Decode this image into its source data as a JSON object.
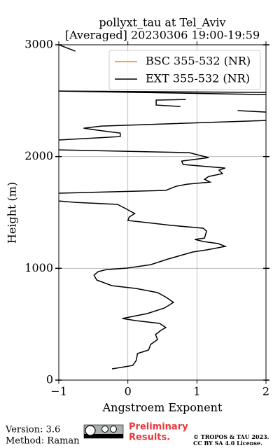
{
  "chart_data": {
    "type": "profile",
    "title": "pollyxt_tau at Tel_Aviv",
    "subtitle": "[Averaged] 20230306 19:00-19:59",
    "x_label": "Angstroem Exponent",
    "y_label": "Height (m)",
    "xlim": [
      -1,
      2
    ],
    "xticks": [
      {
        "value": -1,
        "label": "−1"
      },
      0,
      1,
      2
    ],
    "ylim": [
      0,
      3000
    ],
    "yticks": [
      0,
      1000,
      2000,
      3000
    ],
    "grid": true,
    "legend": "upper right",
    "heights": [
      100,
      131,
      175,
      238,
      269,
      319,
      363,
      407,
      445,
      470,
      507,
      532,
      551,
      595,
      645,
      695,
      739,
      783,
      820,
      845,
      895,
      939,
      971,
      989,
      1002,
      1033,
      1083,
      1146,
      1165,
      1196,
      1221,
      1240,
      1259,
      1271,
      1334,
      1359,
      1384,
      1409,
      1428,
      1459,
      1490,
      1534,
      1572,
      1590,
      1603,
      null,
      1672,
      1697,
      1734,
      1753,
      1772,
      1797,
      1822,
      1847,
      1878,
      1897,
      1929,
      1960,
      1991,
      2035,
      2060,
      null,
      2148,
      2179,
      2210,
      2235,
      2254,
      2273,
      2323,
      null,
      2411,
      2398,
      null,
      2448,
      2461,
      2505,
      2511,
      null,
      2555,
      2586,
      2574,
      null,
      2943,
      2962,
      3000
    ],
    "series": [
      {
        "name": "BSC 355-532 (NR)",
        "color": "#ff7f0e"
      },
      {
        "name": "EXT 355-532 (NR)",
        "color": "#000000",
        "values": [
          -0.23,
          0.07,
          0.12,
          0.14,
          0.3,
          0.33,
          0.43,
          0.4,
          0.48,
          0.55,
          0.46,
          0.12,
          -0.08,
          0.28,
          0.53,
          0.66,
          0.56,
          0.43,
          0.12,
          -0.23,
          -0.45,
          -0.49,
          -0.43,
          -0.31,
          -0.01,
          0.33,
          0.58,
          0.94,
          1.14,
          1.41,
          1.31,
          1.09,
          0.97,
          1.11,
          1.14,
          1.09,
          0.63,
          0.28,
          0.0,
          0.02,
          0.1,
          -0.03,
          -0.15,
          -0.76,
          -1,
          null,
          -1,
          0.55,
          0.7,
          0.86,
          1.19,
          1.11,
          1.17,
          1.37,
          1.32,
          1.41,
          0.8,
          0.78,
          1.17,
          0.89,
          -1,
          null,
          -1,
          -0.11,
          -0.11,
          -0.43,
          -0.64,
          -0.38,
          2,
          null,
          1.59,
          2,
          null,
          0.76,
          0.41,
          0.41,
          0.84,
          null,
          2,
          -1,
          2,
          null,
          -0.76,
          -0.84,
          -1
        ]
      }
    ]
  },
  "footer": {
    "version": "Version: 3.6",
    "method": "Method: Raman",
    "preliminary": [
      "Preliminary",
      "Results."
    ],
    "license": [
      "© TROPOS & TAU 2023.",
      "CC BY SA 4.0 License."
    ]
  }
}
